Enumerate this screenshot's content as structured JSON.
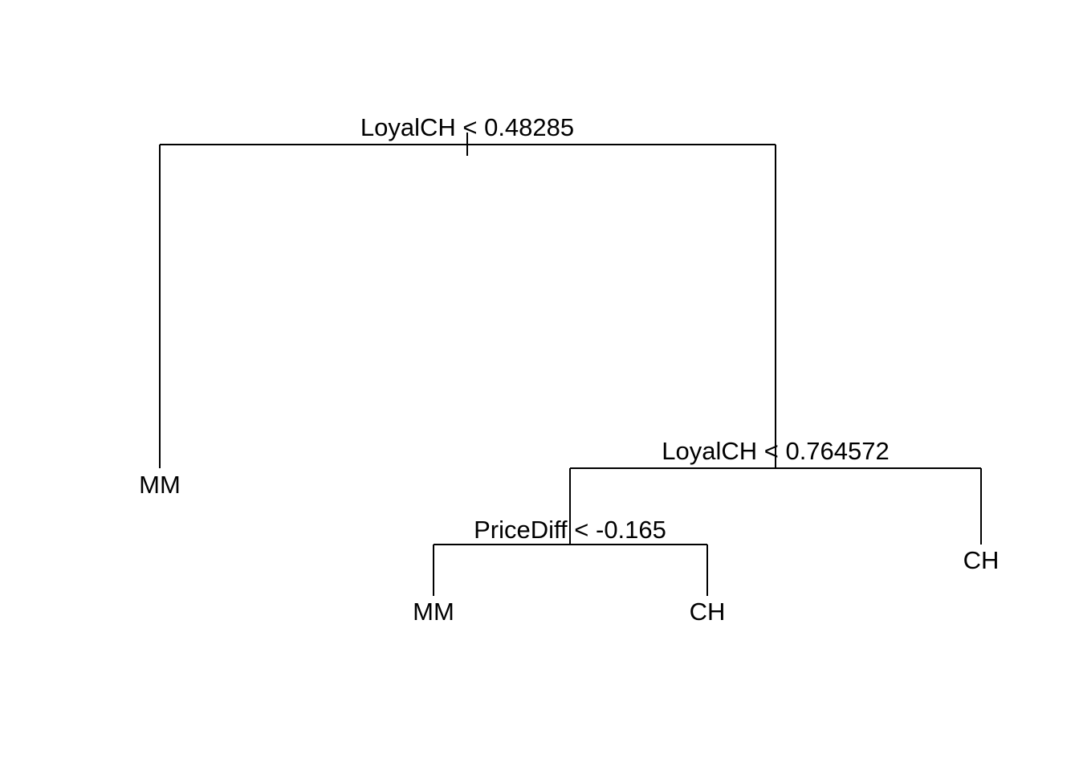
{
  "tree": {
    "root": {
      "split": "LoyalCH < 0.48285",
      "left": {
        "leaf": "MM"
      },
      "right": {
        "split": "LoyalCH < 0.764572",
        "left": {
          "split": "PriceDiff < -0.165",
          "left": {
            "leaf": "MM"
          },
          "right": {
            "leaf": "CH"
          }
        },
        "right": {
          "leaf": "CH"
        }
      }
    }
  }
}
